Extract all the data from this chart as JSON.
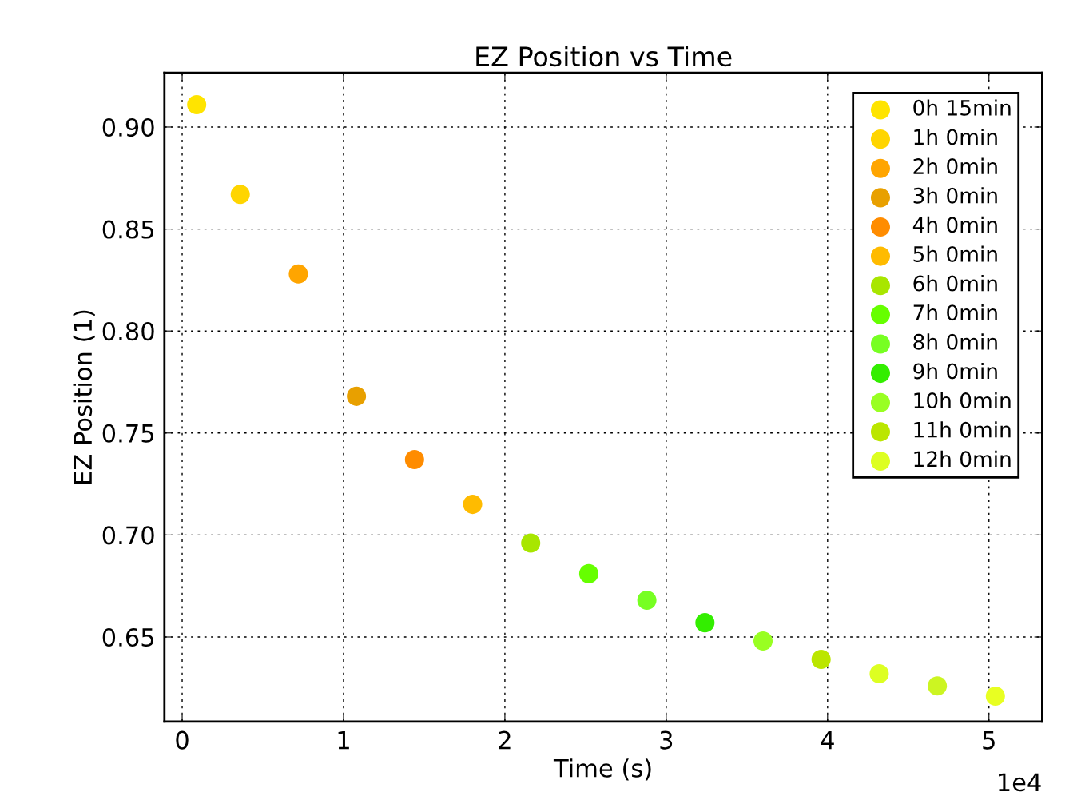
{
  "chart_data": {
    "type": "scatter",
    "title": "EZ Position vs Time",
    "xlabel": "Time (s)",
    "ylabel": "EZ Position (1)",
    "xlim": [
      -0.11,
      5.33
    ],
    "ylim": [
      0.6085,
      0.9266
    ],
    "xticks": [
      0,
      1,
      2,
      3,
      4,
      5
    ],
    "yticks": [
      {
        "value": 0.65,
        "label": "0.65"
      },
      {
        "value": 0.7,
        "label": "0.70"
      },
      {
        "value": 0.75,
        "label": "0.75"
      },
      {
        "value": 0.8,
        "label": "0.80"
      },
      {
        "value": 0.85,
        "label": "0.85"
      },
      {
        "value": 0.9,
        "label": "0.90"
      }
    ],
    "annotations": [
      "1e4"
    ],
    "grid": true,
    "legend": "top right",
    "marker": "circle",
    "series": [
      {
        "name": "0h 15min",
        "color": "#ffe400",
        "x": [
          0.09
        ],
        "values": [
          0.911
        ]
      },
      {
        "name": "1h 0min",
        "color": "#ffd500",
        "x": [
          0.36
        ],
        "values": [
          0.867
        ]
      },
      {
        "name": "2h 0min",
        "color": "#ffa500",
        "x": [
          0.72
        ],
        "values": [
          0.828
        ]
      },
      {
        "name": "3h 0min",
        "color": "#e8a000",
        "x": [
          1.08
        ],
        "values": [
          0.768
        ]
      },
      {
        "name": "4h 0min",
        "color": "#ff8c00",
        "x": [
          1.44
        ],
        "values": [
          0.737
        ]
      },
      {
        "name": "5h 0min",
        "color": "#ffbb00",
        "x": [
          1.8
        ],
        "values": [
          0.715
        ]
      },
      {
        "name": "6h 0min",
        "color": "#a8e600",
        "x": [
          2.16
        ],
        "values": [
          0.696
        ]
      },
      {
        "name": "7h 0min",
        "color": "#66ff00",
        "x": [
          2.52
        ],
        "values": [
          0.681
        ]
      },
      {
        "name": "8h 0min",
        "color": "#77ff22",
        "x": [
          2.88
        ],
        "values": [
          0.668
        ]
      },
      {
        "name": "9h 0min",
        "color": "#33ee00",
        "x": [
          3.24
        ],
        "values": [
          0.657
        ]
      },
      {
        "name": "10h 0min",
        "color": "#99ff22",
        "x": [
          3.6
        ],
        "values": [
          0.648
        ]
      },
      {
        "name": "11h 0min",
        "color": "#bbe600",
        "x": [
          3.96
        ],
        "values": [
          0.639
        ]
      },
      {
        "name": "12h 0min",
        "color": "#ddff22",
        "x": [
          4.32
        ],
        "values": [
          0.632
        ]
      },
      {
        "color": "#ccf522",
        "x": [
          4.68
        ],
        "values": [
          0.626
        ]
      },
      {
        "color": "#e8ff22",
        "x": [
          5.04
        ],
        "values": [
          0.621
        ]
      }
    ]
  }
}
